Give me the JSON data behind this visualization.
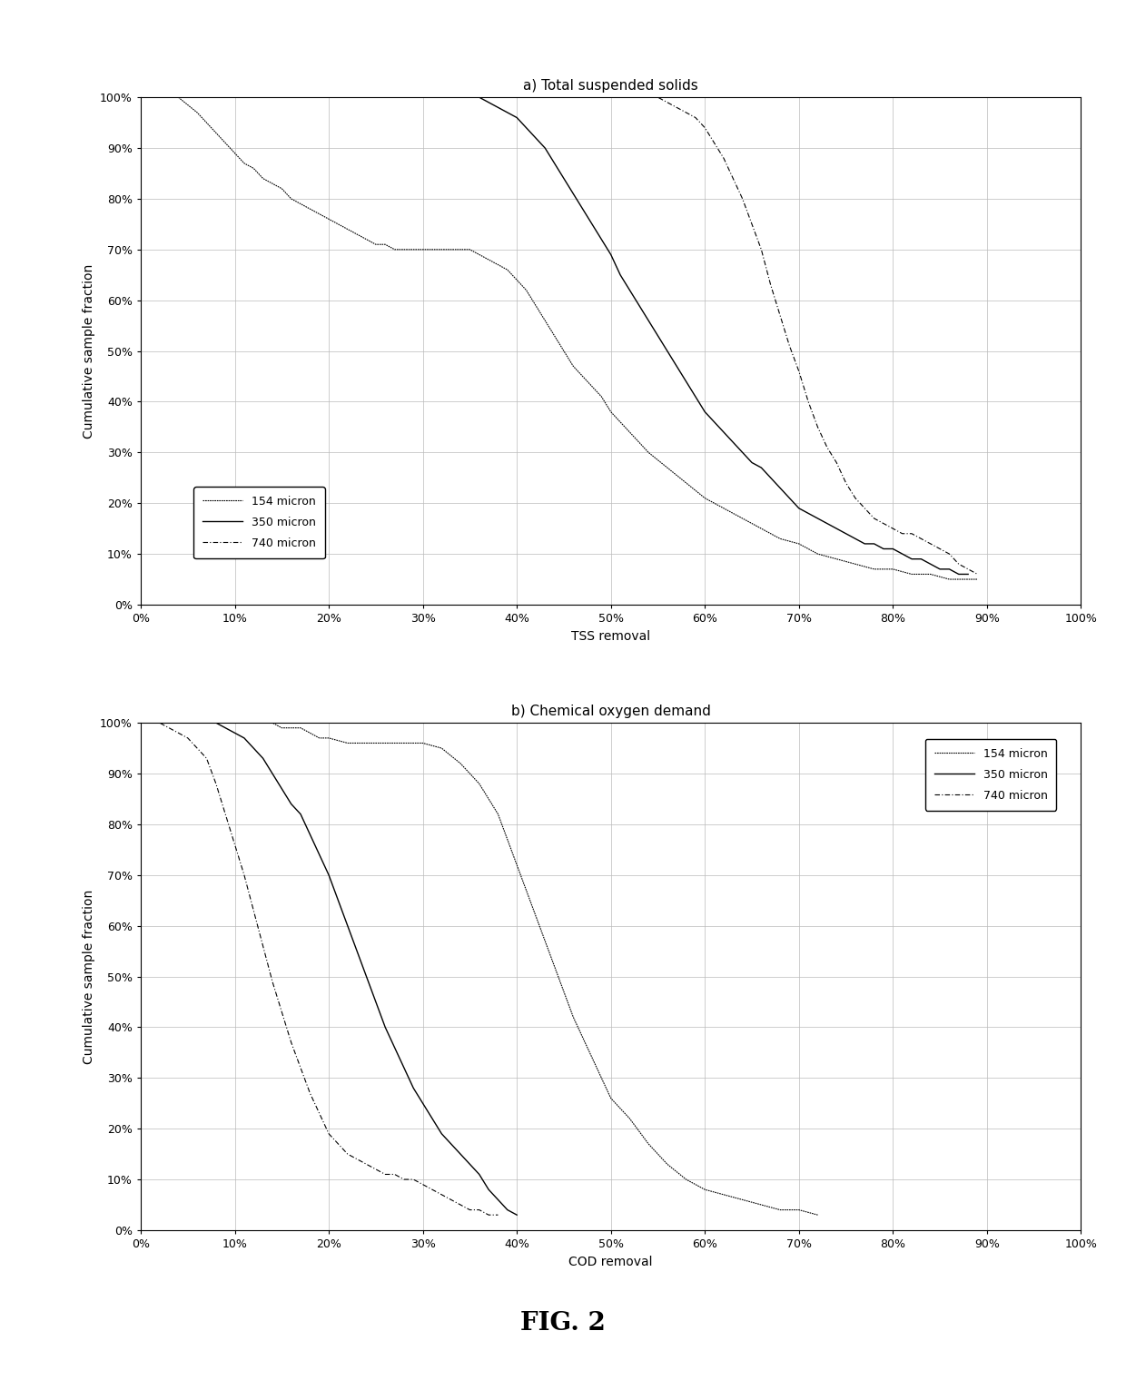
{
  "title_a": "a) Total suspended solids",
  "title_b": "b) Chemical oxygen demand",
  "xlabel_a": "TSS removal",
  "xlabel_b": "COD removal",
  "ylabel": "Cumulative sample fraction",
  "fig_label": "FIG. 2",
  "legend_labels": [
    "154 micron",
    "350 micron",
    "740 micron"
  ],
  "background_color": "#ffffff",
  "tss_154": {
    "x": [
      0.04,
      0.06,
      0.07,
      0.08,
      0.09,
      0.1,
      0.11,
      0.12,
      0.13,
      0.14,
      0.15,
      0.16,
      0.17,
      0.18,
      0.19,
      0.2,
      0.21,
      0.22,
      0.23,
      0.24,
      0.25,
      0.26,
      0.27,
      0.28,
      0.29,
      0.3,
      0.31,
      0.32,
      0.33,
      0.34,
      0.35,
      0.36,
      0.37,
      0.38,
      0.39,
      0.4,
      0.41,
      0.42,
      0.43,
      0.44,
      0.45,
      0.46,
      0.47,
      0.48,
      0.49,
      0.5,
      0.52,
      0.54,
      0.56,
      0.58,
      0.6,
      0.62,
      0.64,
      0.66,
      0.68,
      0.7,
      0.72,
      0.74,
      0.76,
      0.78,
      0.8,
      0.82,
      0.84,
      0.86,
      0.88,
      0.89
    ],
    "y": [
      1.0,
      0.97,
      0.95,
      0.93,
      0.91,
      0.89,
      0.87,
      0.86,
      0.84,
      0.83,
      0.82,
      0.8,
      0.79,
      0.78,
      0.77,
      0.76,
      0.75,
      0.74,
      0.73,
      0.72,
      0.71,
      0.71,
      0.7,
      0.7,
      0.7,
      0.7,
      0.7,
      0.7,
      0.7,
      0.7,
      0.7,
      0.69,
      0.68,
      0.67,
      0.66,
      0.64,
      0.62,
      0.59,
      0.56,
      0.53,
      0.5,
      0.47,
      0.45,
      0.43,
      0.41,
      0.38,
      0.34,
      0.3,
      0.27,
      0.24,
      0.21,
      0.19,
      0.17,
      0.15,
      0.13,
      0.12,
      0.1,
      0.09,
      0.08,
      0.07,
      0.07,
      0.06,
      0.06,
      0.05,
      0.05,
      0.05
    ]
  },
  "tss_350": {
    "x": [
      0.35,
      0.36,
      0.37,
      0.38,
      0.39,
      0.4,
      0.41,
      0.42,
      0.43,
      0.44,
      0.45,
      0.46,
      0.47,
      0.48,
      0.49,
      0.5,
      0.51,
      0.52,
      0.53,
      0.54,
      0.55,
      0.56,
      0.57,
      0.58,
      0.59,
      0.6,
      0.61,
      0.62,
      0.63,
      0.64,
      0.65,
      0.66,
      0.67,
      0.68,
      0.69,
      0.7,
      0.71,
      0.72,
      0.73,
      0.74,
      0.75,
      0.76,
      0.77,
      0.78,
      0.79,
      0.8,
      0.81,
      0.82,
      0.83,
      0.84,
      0.85,
      0.86,
      0.87,
      0.88
    ],
    "y": [
      1.0,
      1.0,
      0.99,
      0.98,
      0.97,
      0.96,
      0.94,
      0.92,
      0.9,
      0.87,
      0.84,
      0.81,
      0.78,
      0.75,
      0.72,
      0.69,
      0.65,
      0.62,
      0.59,
      0.56,
      0.53,
      0.5,
      0.47,
      0.44,
      0.41,
      0.38,
      0.36,
      0.34,
      0.32,
      0.3,
      0.28,
      0.27,
      0.25,
      0.23,
      0.21,
      0.19,
      0.18,
      0.17,
      0.16,
      0.15,
      0.14,
      0.13,
      0.12,
      0.12,
      0.11,
      0.11,
      0.1,
      0.09,
      0.09,
      0.08,
      0.07,
      0.07,
      0.06,
      0.06
    ]
  },
  "tss_740": {
    "x": [
      0.54,
      0.55,
      0.56,
      0.57,
      0.58,
      0.59,
      0.6,
      0.61,
      0.62,
      0.63,
      0.64,
      0.65,
      0.66,
      0.67,
      0.68,
      0.69,
      0.7,
      0.71,
      0.72,
      0.73,
      0.74,
      0.75,
      0.76,
      0.77,
      0.78,
      0.79,
      0.8,
      0.81,
      0.82,
      0.83,
      0.84,
      0.85,
      0.86,
      0.87,
      0.88,
      0.89
    ],
    "y": [
      1.0,
      1.0,
      0.99,
      0.98,
      0.97,
      0.96,
      0.94,
      0.91,
      0.88,
      0.84,
      0.8,
      0.75,
      0.7,
      0.63,
      0.57,
      0.51,
      0.46,
      0.4,
      0.35,
      0.31,
      0.28,
      0.24,
      0.21,
      0.19,
      0.17,
      0.16,
      0.15,
      0.14,
      0.14,
      0.13,
      0.12,
      0.11,
      0.1,
      0.08,
      0.07,
      0.06
    ]
  },
  "cod_740": {
    "x": [
      0.01,
      0.02,
      0.03,
      0.04,
      0.05,
      0.06,
      0.07,
      0.08,
      0.09,
      0.1,
      0.11,
      0.12,
      0.13,
      0.14,
      0.15,
      0.16,
      0.17,
      0.18,
      0.19,
      0.2,
      0.21,
      0.22,
      0.23,
      0.24,
      0.25,
      0.26,
      0.27,
      0.28,
      0.29,
      0.3,
      0.31,
      0.32,
      0.33,
      0.34,
      0.35,
      0.36,
      0.37,
      0.38
    ],
    "y": [
      1.0,
      1.0,
      0.99,
      0.98,
      0.97,
      0.95,
      0.93,
      0.88,
      0.82,
      0.76,
      0.7,
      0.63,
      0.56,
      0.49,
      0.43,
      0.37,
      0.32,
      0.27,
      0.23,
      0.19,
      0.17,
      0.15,
      0.14,
      0.13,
      0.12,
      0.11,
      0.11,
      0.1,
      0.1,
      0.09,
      0.08,
      0.07,
      0.06,
      0.05,
      0.04,
      0.04,
      0.03,
      0.03
    ]
  },
  "cod_350": {
    "x": [
      0.01,
      0.02,
      0.03,
      0.04,
      0.05,
      0.06,
      0.07,
      0.08,
      0.09,
      0.1,
      0.11,
      0.12,
      0.13,
      0.14,
      0.15,
      0.16,
      0.17,
      0.18,
      0.19,
      0.2,
      0.21,
      0.22,
      0.23,
      0.24,
      0.25,
      0.26,
      0.27,
      0.28,
      0.29,
      0.3,
      0.31,
      0.32,
      0.33,
      0.34,
      0.35,
      0.36,
      0.37,
      0.38,
      0.39,
      0.4
    ],
    "y": [
      1.0,
      1.0,
      1.0,
      1.0,
      1.0,
      1.0,
      1.0,
      1.0,
      0.99,
      0.98,
      0.97,
      0.95,
      0.93,
      0.9,
      0.87,
      0.84,
      0.82,
      0.78,
      0.74,
      0.7,
      0.65,
      0.6,
      0.55,
      0.5,
      0.45,
      0.4,
      0.36,
      0.32,
      0.28,
      0.25,
      0.22,
      0.19,
      0.17,
      0.15,
      0.13,
      0.11,
      0.08,
      0.06,
      0.04,
      0.03
    ]
  },
  "cod_154": {
    "x": [
      0.01,
      0.02,
      0.03,
      0.04,
      0.05,
      0.06,
      0.07,
      0.08,
      0.09,
      0.1,
      0.11,
      0.12,
      0.13,
      0.14,
      0.15,
      0.16,
      0.17,
      0.18,
      0.19,
      0.2,
      0.22,
      0.24,
      0.26,
      0.28,
      0.3,
      0.32,
      0.34,
      0.36,
      0.38,
      0.4,
      0.42,
      0.44,
      0.46,
      0.48,
      0.5,
      0.52,
      0.54,
      0.56,
      0.58,
      0.6,
      0.62,
      0.64,
      0.66,
      0.68,
      0.7,
      0.72
    ],
    "y": [
      1.0,
      1.0,
      1.0,
      1.0,
      1.0,
      1.0,
      1.0,
      1.0,
      1.0,
      1.0,
      1.0,
      1.0,
      1.0,
      1.0,
      0.99,
      0.99,
      0.99,
      0.98,
      0.97,
      0.97,
      0.96,
      0.96,
      0.96,
      0.96,
      0.96,
      0.95,
      0.92,
      0.88,
      0.82,
      0.72,
      0.62,
      0.52,
      0.42,
      0.34,
      0.26,
      0.22,
      0.17,
      0.13,
      0.1,
      0.08,
      0.07,
      0.06,
      0.05,
      0.04,
      0.04,
      0.03
    ]
  }
}
